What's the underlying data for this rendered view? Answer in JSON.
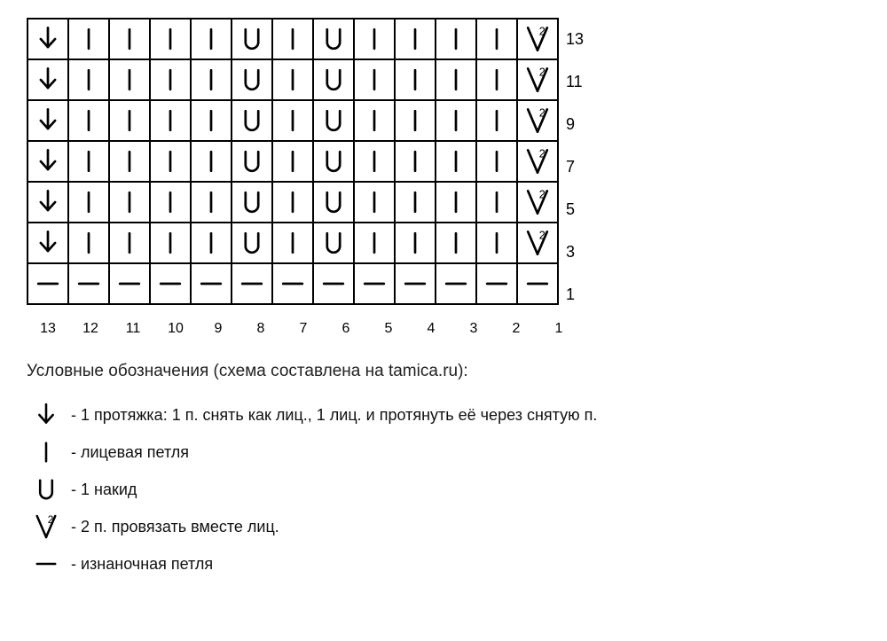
{
  "chart": {
    "cols": 13,
    "row_labels": [
      "13",
      "11",
      "9",
      "7",
      "5",
      "3",
      "1"
    ],
    "col_labels": [
      "13",
      "12",
      "11",
      "10",
      "9",
      "8",
      "7",
      "6",
      "5",
      "4",
      "3",
      "2",
      "1"
    ],
    "rows": [
      [
        "arrow",
        "knit",
        "knit",
        "knit",
        "knit",
        "yo",
        "knit",
        "yo",
        "knit",
        "knit",
        "knit",
        "knit",
        "v2"
      ],
      [
        "arrow",
        "knit",
        "knit",
        "knit",
        "knit",
        "yo",
        "knit",
        "yo",
        "knit",
        "knit",
        "knit",
        "knit",
        "v2"
      ],
      [
        "arrow",
        "knit",
        "knit",
        "knit",
        "knit",
        "yo",
        "knit",
        "yo",
        "knit",
        "knit",
        "knit",
        "knit",
        "v2"
      ],
      [
        "arrow",
        "knit",
        "knit",
        "knit",
        "knit",
        "yo",
        "knit",
        "yo",
        "knit",
        "knit",
        "knit",
        "knit",
        "v2"
      ],
      [
        "arrow",
        "knit",
        "knit",
        "knit",
        "knit",
        "yo",
        "knit",
        "yo",
        "knit",
        "knit",
        "knit",
        "knit",
        "v2"
      ],
      [
        "arrow",
        "knit",
        "knit",
        "knit",
        "knit",
        "yo",
        "knit",
        "yo",
        "knit",
        "knit",
        "knit",
        "knit",
        "v2"
      ],
      [
        "purl",
        "purl",
        "purl",
        "purl",
        "purl",
        "purl",
        "purl",
        "purl",
        "purl",
        "purl",
        "purl",
        "purl",
        "purl"
      ]
    ],
    "stroke": "#000000",
    "stroke_width": 3,
    "cell_size": 44
  },
  "legend_title": "Условные обозначения (схема составлена на tamica.ru):",
  "legend": [
    {
      "sym": "arrow",
      "text": "- 1 протяжка: 1 п. снять как лиц., 1 лиц. и протянуть её через снятую п."
    },
    {
      "sym": "knit",
      "text": "- лицевая петля"
    },
    {
      "sym": "yo",
      "text": "- 1 накид"
    },
    {
      "sym": "v2",
      "text": "- 2 п. провязать вместе лиц."
    },
    {
      "sym": "purl",
      "text": "- изнаночная петля"
    }
  ]
}
